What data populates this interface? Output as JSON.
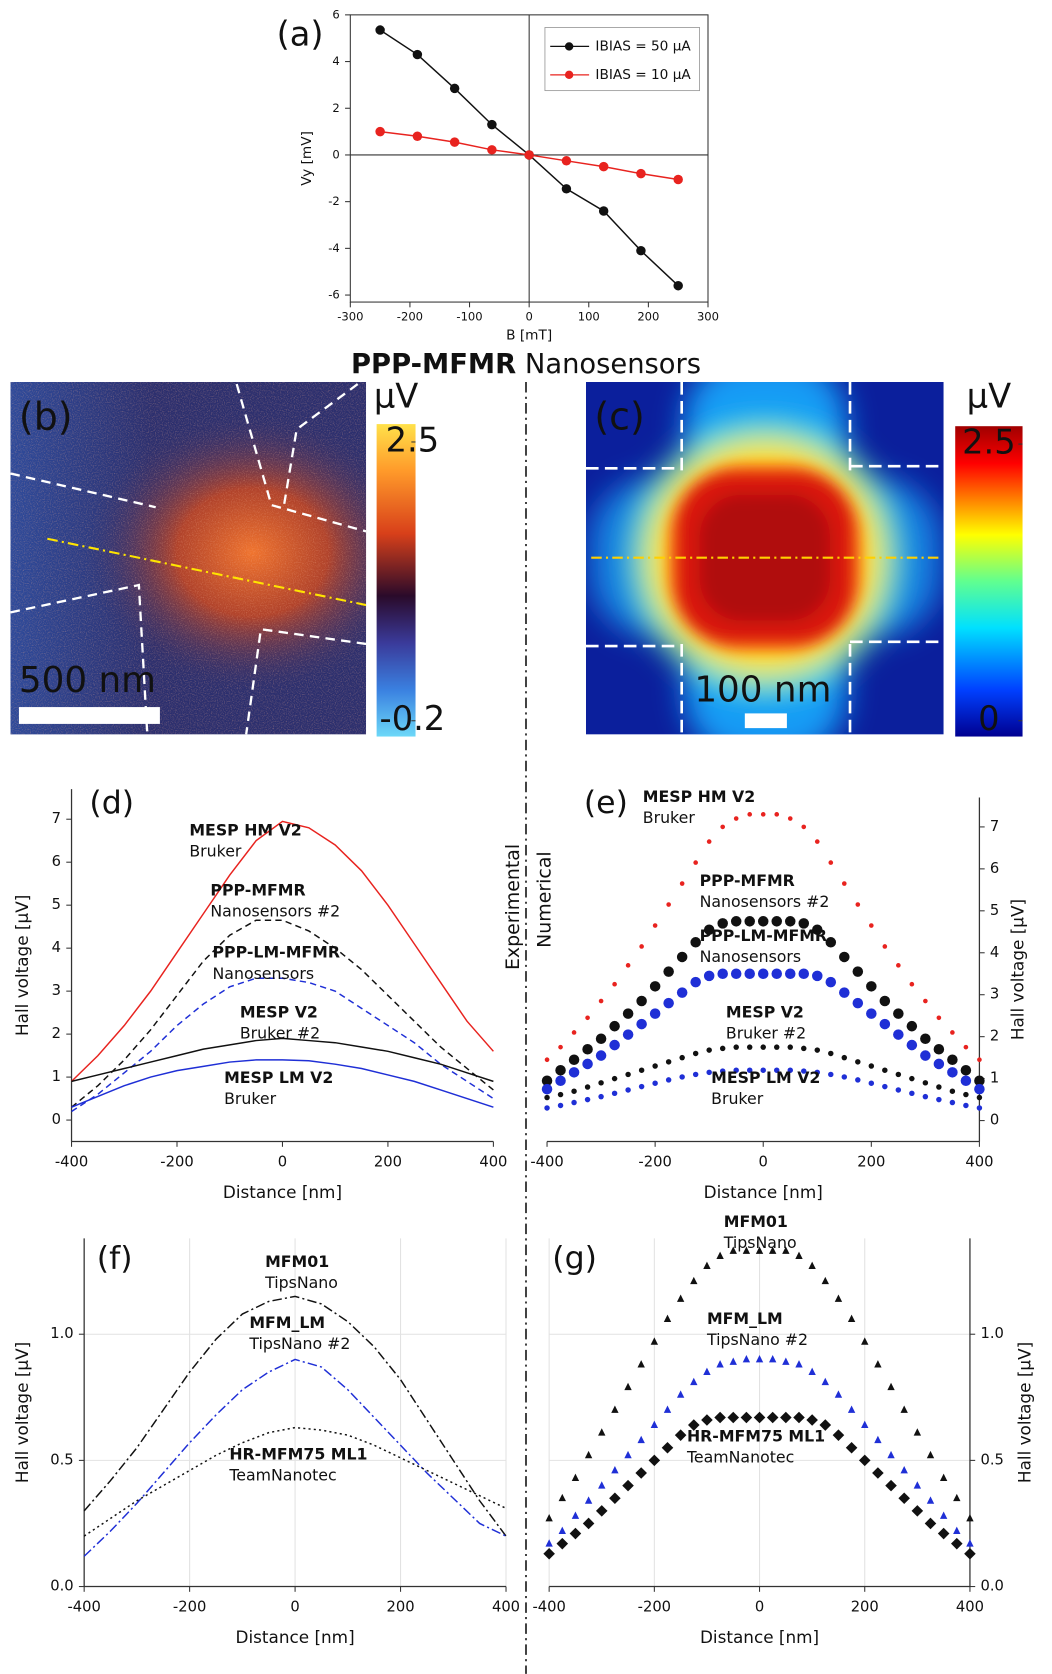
{
  "heading": {
    "bold": "PPP-MFMR",
    "rest": "Nanosensors"
  },
  "divider_labels": [
    "Experimental",
    "Numerical"
  ],
  "chart_data": [
    {
      "type": "line",
      "panel_label": "(a)",
      "xlabel": "B [mT]",
      "ylabel": "Vy [mV]",
      "x": [
        -250,
        -187.5,
        -125,
        -62.5,
        0,
        62.5,
        125,
        187.5,
        250
      ],
      "xlim": [
        -300,
        300
      ],
      "xticks": [
        -300,
        -200,
        -100,
        0,
        100,
        200,
        300
      ],
      "ylim": [
        -6.3,
        6
      ],
      "yticks": [
        -6,
        -4,
        -2,
        0,
        2,
        4,
        6
      ],
      "zero_lines": true,
      "legend": "upper right",
      "series": [
        {
          "name": "IBIAS = 50 µA",
          "color": "#111111",
          "marker": "circle",
          "size": 4.5,
          "dash": "solid",
          "values": [
            5.35,
            4.3,
            2.85,
            1.3,
            0,
            -1.45,
            -2.4,
            -4.1,
            -5.6
          ]
        },
        {
          "name": "IBIAS = 10 µA",
          "color": "#e8231f",
          "marker": "circle",
          "size": 4.5,
          "dash": "solid",
          "values": [
            1.0,
            0.8,
            0.55,
            0.22,
            0,
            -0.25,
            -0.5,
            -0.8,
            -1.05
          ]
        }
      ]
    },
    {
      "type": "heatmap",
      "panel_label": "(b)",
      "colorbar_label": "µV",
      "clim": [
        -0.2,
        2.5
      ],
      "cticks": [
        -0.2,
        2.5
      ],
      "scalebar": "500 nm"
    },
    {
      "type": "heatmap",
      "panel_label": "(c)",
      "colorbar_label": "µV",
      "clim": [
        0,
        2.5
      ],
      "cticks": [
        0,
        2.5
      ],
      "scalebar": "100 nm"
    },
    {
      "type": "line",
      "panel_label": "(d)",
      "xlabel": "Distance [nm]",
      "ylabel": "Hall voltage [µV]",
      "x": [
        -400,
        -350,
        -300,
        -250,
        -200,
        -150,
        -100,
        -50,
        0,
        50,
        100,
        150,
        200,
        250,
        300,
        350,
        400
      ],
      "xlim": [
        -400,
        400
      ],
      "xticks": [
        -400,
        -200,
        0,
        200,
        400
      ],
      "ylim": [
        -0.5,
        7.7
      ],
      "yticks": [
        0,
        1,
        2,
        3,
        4,
        5,
        6,
        7
      ],
      "yaxis": "left",
      "series": [
        {
          "name": "MESP HM V2",
          "note": "Bruker",
          "color": "#e8231f",
          "dash": "solid",
          "values": [
            0.9,
            1.5,
            2.2,
            3.0,
            3.9,
            4.8,
            5.7,
            6.5,
            6.95,
            6.8,
            6.4,
            5.8,
            5.0,
            4.1,
            3.2,
            2.3,
            1.6
          ]
        },
        {
          "name": "PPP-MFMR",
          "note": "Nanosensors #2",
          "color": "#111111",
          "dash": "dashed",
          "values": [
            0.3,
            0.8,
            1.4,
            2.1,
            2.9,
            3.7,
            4.3,
            4.65,
            4.65,
            4.4,
            4.0,
            3.5,
            2.9,
            2.3,
            1.7,
            1.2,
            0.7
          ]
        },
        {
          "name": "PPP-LM-MFMR",
          "note": "Nanosensors",
          "color": "#1f2fd6",
          "dash": "dashed",
          "values": [
            0.2,
            0.6,
            1.1,
            1.6,
            2.2,
            2.7,
            3.1,
            3.3,
            3.3,
            3.2,
            3.0,
            2.6,
            2.2,
            1.8,
            1.3,
            0.9,
            0.5
          ]
        },
        {
          "name": "MESP V2",
          "note": "Bruker #2",
          "color": "#111111",
          "dash": "solid",
          "values": [
            0.9,
            1.05,
            1.2,
            1.35,
            1.5,
            1.65,
            1.75,
            1.85,
            1.9,
            1.85,
            1.8,
            1.7,
            1.6,
            1.45,
            1.3,
            1.1,
            0.9
          ]
        },
        {
          "name": "MESP LM V2",
          "note": "Bruker",
          "color": "#1f2fd6",
          "dash": "solid",
          "values": [
            0.3,
            0.55,
            0.8,
            1.0,
            1.15,
            1.25,
            1.35,
            1.4,
            1.4,
            1.38,
            1.3,
            1.2,
            1.05,
            0.9,
            0.7,
            0.5,
            0.3
          ]
        }
      ]
    },
    {
      "type": "scatter",
      "panel_label": "(e)",
      "xlabel": "Distance [nm]",
      "ylabel": "Hall voltage [µV]",
      "x": [
        -400,
        -375,
        -350,
        -325,
        -300,
        -275,
        -250,
        -225,
        -200,
        -175,
        -150,
        -125,
        -100,
        -75,
        -50,
        -25,
        0,
        25,
        50,
        75,
        100,
        125,
        150,
        175,
        200,
        225,
        250,
        275,
        300,
        325,
        350,
        375,
        400
      ],
      "xlim": [
        -400,
        400
      ],
      "xticks": [
        -400,
        -200,
        0,
        200,
        400
      ],
      "ylim": [
        -0.5,
        7.7
      ],
      "yticks": [
        0,
        1,
        2,
        3,
        4,
        5,
        6,
        7
      ],
      "yaxis": "right",
      "series": [
        {
          "name": "MESP HM V2",
          "note": "Bruker",
          "color": "#e8231f",
          "marker": "circle",
          "size": 2.2,
          "values": [
            1.45,
            1.75,
            2.1,
            2.45,
            2.85,
            3.25,
            3.7,
            4.15,
            4.65,
            5.15,
            5.65,
            6.15,
            6.65,
            7.0,
            7.2,
            7.3,
            7.3,
            7.3,
            7.2,
            7.0,
            6.65,
            6.15,
            5.65,
            5.15,
            4.65,
            4.15,
            3.7,
            3.25,
            2.85,
            2.45,
            2.1,
            1.75,
            1.45
          ]
        },
        {
          "name": "PPP-MFMR",
          "note": "Nanosensors #2",
          "color": "#111111",
          "marker": "circle",
          "size": 5,
          "values": [
            0.95,
            1.2,
            1.45,
            1.7,
            1.95,
            2.25,
            2.55,
            2.85,
            3.2,
            3.55,
            3.9,
            4.25,
            4.55,
            4.7,
            4.75,
            4.75,
            4.75,
            4.75,
            4.75,
            4.7,
            4.55,
            4.25,
            3.9,
            3.55,
            3.2,
            2.85,
            2.55,
            2.25,
            1.95,
            1.7,
            1.45,
            1.2,
            0.95
          ]
        },
        {
          "name": "PPP-LM-MFMR",
          "note": "Nanosensors",
          "color": "#1f2fd6",
          "marker": "circle",
          "size": 5,
          "values": [
            0.75,
            0.95,
            1.15,
            1.35,
            1.55,
            1.8,
            2.05,
            2.3,
            2.55,
            2.8,
            3.05,
            3.3,
            3.45,
            3.5,
            3.5,
            3.5,
            3.5,
            3.5,
            3.5,
            3.5,
            3.45,
            3.3,
            3.05,
            2.8,
            2.55,
            2.3,
            2.05,
            1.8,
            1.55,
            1.35,
            1.15,
            0.95,
            0.75
          ]
        },
        {
          "name": "MESP V2",
          "note": "Bruker #2",
          "color": "#111111",
          "marker": "circle",
          "size": 2.6,
          "values": [
            0.55,
            0.62,
            0.7,
            0.8,
            0.9,
            1.0,
            1.1,
            1.2,
            1.3,
            1.4,
            1.5,
            1.6,
            1.68,
            1.72,
            1.75,
            1.75,
            1.75,
            1.75,
            1.75,
            1.72,
            1.68,
            1.6,
            1.5,
            1.4,
            1.3,
            1.2,
            1.1,
            1.0,
            0.9,
            0.8,
            0.7,
            0.62,
            0.55
          ]
        },
        {
          "name": "MESP LM V2",
          "note": "Bruker",
          "color": "#1f2fd6",
          "marker": "circle",
          "size": 2.6,
          "values": [
            0.3,
            0.36,
            0.43,
            0.5,
            0.57,
            0.65,
            0.73,
            0.81,
            0.89,
            0.97,
            1.04,
            1.1,
            1.15,
            1.18,
            1.2,
            1.2,
            1.2,
            1.2,
            1.2,
            1.18,
            1.15,
            1.1,
            1.04,
            0.97,
            0.89,
            0.81,
            0.73,
            0.65,
            0.57,
            0.5,
            0.43,
            0.36,
            0.3
          ]
        }
      ]
    },
    {
      "type": "line",
      "panel_label": "(f)",
      "xlabel": "Distance [nm]",
      "ylabel": "Hall voltage [µV]",
      "x": [
        -400,
        -350,
        -300,
        -250,
        -200,
        -150,
        -100,
        -50,
        0,
        50,
        100,
        150,
        200,
        250,
        300,
        350,
        400
      ],
      "xlim": [
        -400,
        400
      ],
      "xticks": [
        -400,
        -200,
        0,
        200,
        400
      ],
      "ylim": [
        0,
        1.38
      ],
      "yticks": [
        {
          "value": 0,
          "label": "0.0"
        },
        0.5,
        {
          "value": 1,
          "label": "1.0"
        }
      ],
      "yaxis": "left",
      "grid": true,
      "series": [
        {
          "name": "MFM01",
          "note": "TipsNano",
          "color": "#111111",
          "dash": "dashdot",
          "values": [
            0.3,
            0.42,
            0.55,
            0.7,
            0.85,
            0.98,
            1.08,
            1.13,
            1.15,
            1.12,
            1.05,
            0.95,
            0.82,
            0.66,
            0.5,
            0.34,
            0.2
          ]
        },
        {
          "name": "MFM_LM",
          "note": "TipsNano #2",
          "color": "#1f2fd6",
          "dash": "dashdot",
          "values": [
            0.12,
            0.22,
            0.33,
            0.45,
            0.57,
            0.68,
            0.78,
            0.85,
            0.9,
            0.87,
            0.78,
            0.67,
            0.56,
            0.45,
            0.35,
            0.25,
            0.2
          ]
        },
        {
          "name": "HR-MFM75 ML1",
          "note": "TeamNanotec",
          "color": "#111111",
          "dash": "dotted",
          "values": [
            0.2,
            0.27,
            0.34,
            0.4,
            0.46,
            0.52,
            0.57,
            0.61,
            0.63,
            0.62,
            0.6,
            0.56,
            0.51,
            0.46,
            0.41,
            0.36,
            0.31
          ]
        }
      ]
    },
    {
      "type": "scatter",
      "panel_label": "(g)",
      "xlabel": "Distance [nm]",
      "ylabel": "Hall voltage [µV]",
      "x": [
        -400,
        -375,
        -350,
        -325,
        -300,
        -275,
        -250,
        -225,
        -200,
        -175,
        -150,
        -125,
        -100,
        -75,
        -50,
        -25,
        0,
        25,
        50,
        75,
        100,
        125,
        150,
        175,
        200,
        225,
        250,
        275,
        300,
        325,
        350,
        375,
        400
      ],
      "xlim": [
        -400,
        400
      ],
      "xticks": [
        -400,
        -200,
        0,
        200,
        400
      ],
      "ylim": [
        0,
        1.38
      ],
      "yticks": [
        {
          "value": 0,
          "label": "0.0"
        },
        0.5,
        {
          "value": 1,
          "label": "1.0"
        }
      ],
      "yaxis": "right",
      "grid": true,
      "series": [
        {
          "name": "MFM01",
          "note": "TipsNano",
          "color": "#111111",
          "marker": "triangle",
          "size": 3.5,
          "values": [
            0.27,
            0.35,
            0.43,
            0.52,
            0.61,
            0.7,
            0.79,
            0.88,
            0.97,
            1.06,
            1.14,
            1.21,
            1.27,
            1.31,
            1.33,
            1.33,
            1.33,
            1.33,
            1.33,
            1.31,
            1.27,
            1.21,
            1.14,
            1.06,
            0.97,
            0.88,
            0.79,
            0.7,
            0.61,
            0.52,
            0.43,
            0.35,
            0.27
          ]
        },
        {
          "name": "MFM_LM",
          "note": "TipsNano #2",
          "color": "#1f2fd6",
          "marker": "triangle",
          "size": 3.5,
          "values": [
            0.17,
            0.22,
            0.28,
            0.34,
            0.4,
            0.46,
            0.52,
            0.58,
            0.64,
            0.7,
            0.76,
            0.81,
            0.85,
            0.88,
            0.89,
            0.9,
            0.9,
            0.9,
            0.89,
            0.88,
            0.85,
            0.81,
            0.76,
            0.7,
            0.64,
            0.58,
            0.52,
            0.46,
            0.4,
            0.34,
            0.28,
            0.22,
            0.17
          ]
        },
        {
          "name": "HR-MFM75 ML1",
          "note": "TeamNanotec",
          "color": "#111111",
          "marker": "diamond",
          "size": 5.5,
          "values": [
            0.13,
            0.17,
            0.21,
            0.25,
            0.3,
            0.35,
            0.4,
            0.45,
            0.5,
            0.55,
            0.6,
            0.64,
            0.66,
            0.67,
            0.67,
            0.67,
            0.67,
            0.67,
            0.67,
            0.67,
            0.66,
            0.64,
            0.6,
            0.55,
            0.5,
            0.45,
            0.4,
            0.35,
            0.3,
            0.25,
            0.21,
            0.17,
            0.13
          ]
        }
      ]
    }
  ]
}
